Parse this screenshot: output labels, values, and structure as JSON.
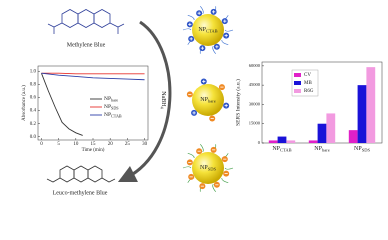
{
  "molecule_top": "Methylene Blue",
  "molecule_bottom": "Leuco-methylene Blue",
  "reagent": "NaBH4",
  "nanoparticles": [
    "NPCTAB",
    "NPbare",
    "NPSDS"
  ],
  "chart_data": [
    {
      "type": "line",
      "xlabel": "Time (min)",
      "ylabel": "Absorbance (a.u.)",
      "xlim": [
        -1,
        31
      ],
      "xticks": [
        0,
        5,
        10,
        15,
        20,
        25,
        30
      ],
      "ylim": [
        -0.05,
        1.08
      ],
      "yticks": [
        {
          "value": 0,
          "label": "0.0"
        },
        0.2,
        0.4,
        0.6,
        0.8,
        {
          "value": 1,
          "label": "1.0"
        }
      ],
      "series": [
        {
          "name": "NPbare",
          "color": "#333333",
          "x": [
            0,
            2,
            4,
            6,
            8,
            10,
            12
          ],
          "values": [
            0.97,
            0.7,
            0.45,
            0.22,
            0.12,
            0.06,
            0.02
          ]
        },
        {
          "name": "NPSDS",
          "color": "#e8322c",
          "x": [
            0,
            5,
            10,
            15,
            20,
            25,
            30
          ],
          "values": [
            0.97,
            0.97,
            0.96,
            0.96,
            0.96,
            0.96,
            0.96
          ]
        },
        {
          "name": "NPCTAB",
          "color": "#2c3fa8",
          "x": [
            0,
            5,
            10,
            15,
            20,
            25,
            30
          ],
          "values": [
            0.97,
            0.94,
            0.92,
            0.9,
            0.89,
            0.88,
            0.87
          ]
        }
      ]
    },
    {
      "type": "bar",
      "ylabel": "SERS Intensity (a.u.)",
      "categories": [
        "NPCTAB",
        "NPbare",
        "NPSDS"
      ],
      "ylim": [
        0,
        63000
      ],
      "yticks": [
        0,
        15000,
        30000,
        45000,
        60000
      ],
      "series": [
        {
          "name": "CV",
          "color": "#e020c8",
          "values": [
            2000,
            2000,
            10000
          ]
        },
        {
          "name": "MB",
          "color": "#1a12d8",
          "values": [
            5000,
            15000,
            45000
          ]
        },
        {
          "name": "R6G",
          "color": "#f29ae0",
          "values": [
            2000,
            23000,
            59000
          ]
        }
      ]
    }
  ]
}
